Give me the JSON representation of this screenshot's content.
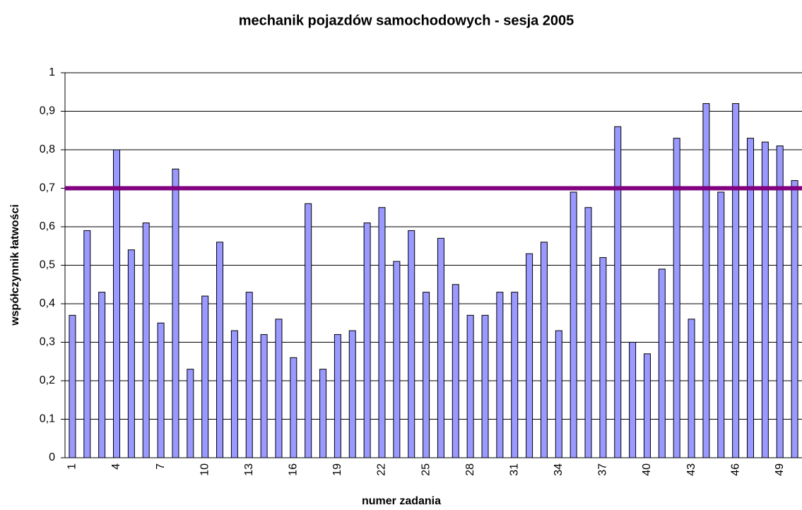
{
  "chart_data": {
    "type": "bar",
    "title": "mechanik pojazdów samochodowych - sesja 2005",
    "x_label": "numer zadania",
    "y_label": "współczynnik łatwości",
    "categories": [
      "1",
      null,
      null,
      "4",
      null,
      null,
      "7",
      null,
      null,
      "10",
      null,
      null,
      "13",
      null,
      null,
      "16",
      null,
      null,
      "19",
      null,
      null,
      "22",
      null,
      null,
      "25",
      null,
      null,
      "28",
      null,
      null,
      "31",
      null,
      null,
      "34",
      null,
      null,
      "37",
      null,
      null,
      "40",
      null,
      null,
      "43",
      null,
      null,
      "46",
      null,
      null,
      "49",
      null
    ],
    "values": [
      0.37,
      0.59,
      0.43,
      0.8,
      0.54,
      0.61,
      0.35,
      0.75,
      0.23,
      0.42,
      0.56,
      0.33,
      0.43,
      0.32,
      0.36,
      0.26,
      0.66,
      0.23,
      0.32,
      0.33,
      0.61,
      0.65,
      0.51,
      0.59,
      0.43,
      0.57,
      0.45,
      0.37,
      0.37,
      0.43,
      0.43,
      0.53,
      0.56,
      0.33,
      0.69,
      0.65,
      0.52,
      0.86,
      0.3,
      0.27,
      0.49,
      0.83,
      0.36,
      0.92,
      0.69,
      0.92,
      0.83,
      0.82,
      0.81,
      0.72
    ],
    "color": "#9999ff",
    "reference_line": {
      "value": 0.7,
      "color": "#800080"
    },
    "ylim": [
      0,
      1
    ],
    "yticks": [
      0,
      {
        "value": 0.1,
        "label": "0,1"
      },
      {
        "value": 0.2,
        "label": "0,2"
      },
      {
        "value": 0.3,
        "label": "0,3"
      },
      {
        "value": 0.4,
        "label": "0,4"
      },
      {
        "value": 0.5,
        "label": "0,5"
      },
      {
        "value": 0.6,
        "label": "0,6"
      },
      {
        "value": 0.7,
        "label": "0,7"
      },
      {
        "value": 0.8,
        "label": "0,8"
      },
      {
        "value": 0.9,
        "label": "0,9"
      },
      1
    ],
    "grid": true
  }
}
